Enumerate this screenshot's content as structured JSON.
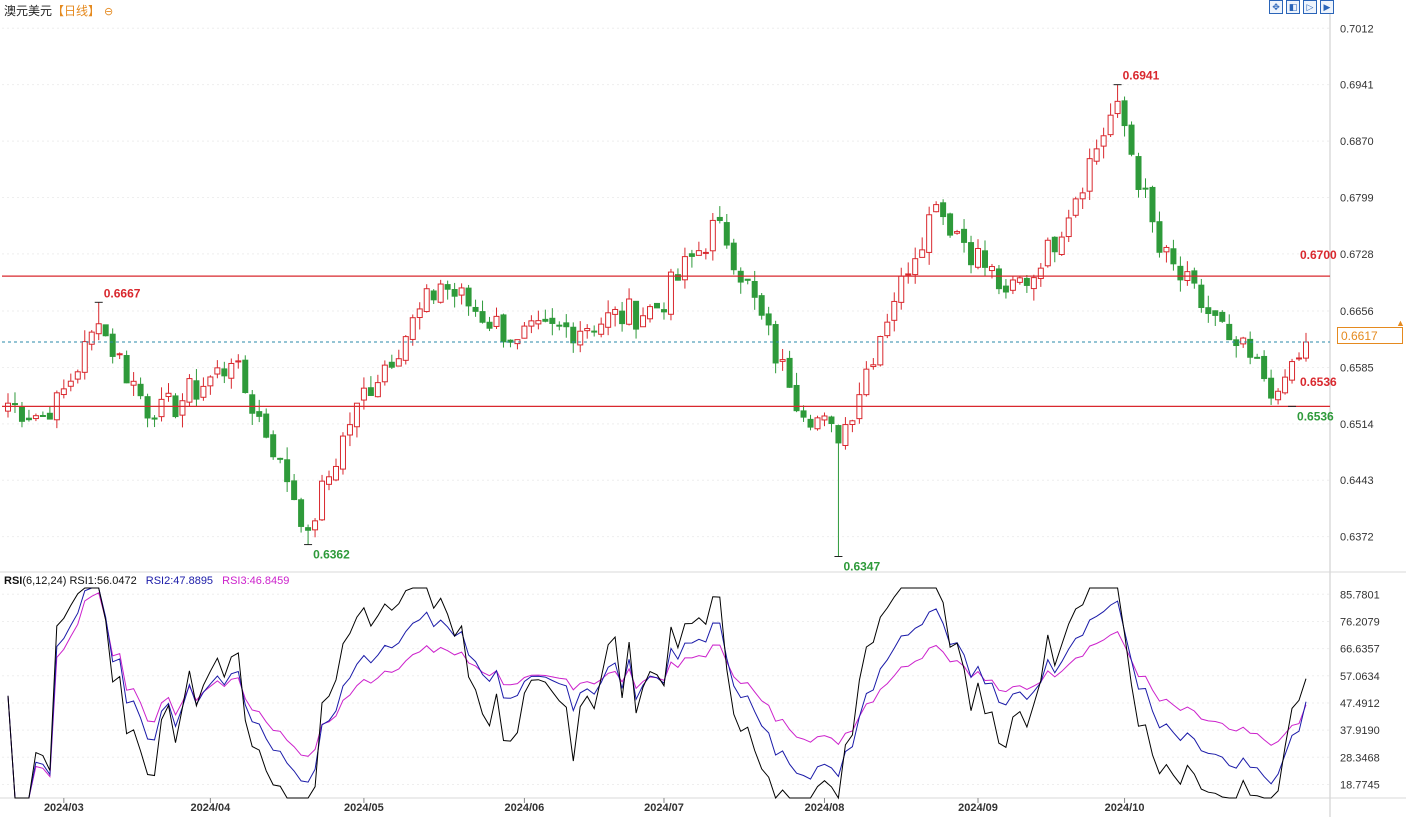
{
  "title": {
    "symbol": "澳元美元",
    "timeframe": "【日线】",
    "zoom_icon": "zoom-out-icon"
  },
  "toolbar": {
    "icons": [
      "expand-icon",
      "panel-left-icon",
      "panel-right-icon",
      "panel-last-icon"
    ]
  },
  "price_axis": {
    "ticks": [
      "0.7012",
      "0.6941",
      "0.6870",
      "0.6799",
      "0.6728",
      "0.6656",
      "0.6585",
      "0.6514",
      "0.6443",
      "0.6372"
    ]
  },
  "rsi_axis": {
    "ticks": [
      "85.7801",
      "76.2079",
      "66.6357",
      "57.0634",
      "47.4912",
      "37.9190",
      "28.3468",
      "18.7745"
    ]
  },
  "date_axis": {
    "labels": [
      "2024/03",
      "2024/04",
      "2024/05",
      "2024/06",
      "2024/07",
      "2024/08",
      "2024/09",
      "2024/10"
    ]
  },
  "rsi_legend": {
    "name": "RSI",
    "params": "(6,12,24)",
    "rsi1": "RSI1:56.0472",
    "rsi2": "RSI2:47.8895",
    "rsi3": "RSI3:46.8459"
  },
  "colors": {
    "up": "#d9282e",
    "down": "#2e9a3a",
    "hline": "#d9282e",
    "current": "#e58a1f",
    "rsi1": "#000000",
    "rsi2": "#1a1aa8",
    "rsi3": "#cc22cc"
  },
  "current_price": "0.6617",
  "horizontal_lines": [
    {
      "price": 0.67,
      "label": "0.6700"
    },
    {
      "price": 0.6536,
      "label": "0.6536"
    }
  ],
  "annotations": [
    {
      "label": "0.6667",
      "kind": "high"
    },
    {
      "label": "0.6362",
      "kind": "low"
    },
    {
      "label": "0.6941",
      "kind": "high"
    },
    {
      "label": "0.6347",
      "kind": "low"
    },
    {
      "label": "0.6536",
      "kind": "low"
    }
  ],
  "chart_data": {
    "type": "candlestick",
    "symbol": "澳元美元",
    "period": "日线",
    "ylim": [
      0.633,
      0.7035
    ],
    "extremes": {
      "high": 0.6941,
      "low": 0.6347
    },
    "anchors": [
      [
        "2024-02-20",
        0.654
      ],
      [
        "2024-02-28",
        0.652
      ],
      [
        "2024-03-08",
        0.664
      ],
      [
        "2024-03-20",
        0.652
      ],
      [
        "2024-04-04",
        0.659
      ],
      [
        "2024-04-15",
        0.647
      ],
      [
        "2024-04-19",
        0.638
      ],
      [
        "2024-04-30",
        0.654
      ],
      [
        "2024-05-16",
        0.669
      ],
      [
        "2024-05-31",
        0.662
      ],
      [
        "2024-06-28",
        0.666
      ],
      [
        "2024-07-11",
        0.677
      ],
      [
        "2024-07-25",
        0.656
      ],
      [
        "2024-08-05",
        0.649
      ],
      [
        "2024-08-16",
        0.67
      ],
      [
        "2024-08-23",
        0.679
      ],
      [
        "2024-09-06",
        0.668
      ],
      [
        "2024-09-13",
        0.671
      ],
      [
        "2024-09-30",
        0.692
      ],
      [
        "2024-10-08",
        0.673
      ],
      [
        "2024-10-22",
        0.662
      ],
      [
        "2024-10-31",
        0.6555
      ],
      [
        "2024-11-06",
        0.6617
      ]
    ],
    "rsi": {
      "params": [
        6,
        12,
        24
      ],
      "last": {
        "RSI1": 56.0472,
        "RSI2": 47.8895,
        "RSI3": 46.8459
      },
      "ylim": [
        14,
        88
      ]
    },
    "current": 0.6617,
    "support_resistance": [
      0.67,
      0.6536
    ]
  }
}
